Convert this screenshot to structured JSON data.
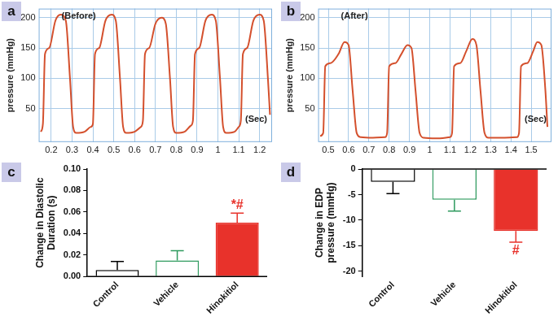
{
  "chart_data": [
    {
      "type": "line",
      "title": "a",
      "x_label": "(Sec)",
      "y_label": "pressure (mmHg)",
      "annotations": [
        {
          "text": "(Before)"
        }
      ],
      "color": "#d4502d",
      "grid": true,
      "x": [
        0.15,
        0.16,
        0.17,
        0.19,
        0.22,
        0.245,
        0.27,
        0.29,
        0.305,
        0.32,
        0.36,
        0.39,
        0.4,
        0.41,
        0.43,
        0.46,
        0.49,
        0.51,
        0.53,
        0.545,
        0.56,
        0.6,
        0.63,
        0.64,
        0.65,
        0.67,
        0.7,
        0.73,
        0.75,
        0.77,
        0.785,
        0.8,
        0.84,
        0.87,
        0.88,
        0.89,
        0.91,
        0.94,
        0.97,
        0.99,
        1.01,
        1.025,
        1.04,
        1.08,
        1.1,
        1.11,
        1.12,
        1.14,
        1.17,
        1.2,
        1.22,
        1.24,
        1.25
      ],
      "values": [
        12,
        25,
        140,
        150,
        195,
        205,
        195,
        100,
        20,
        10,
        12,
        20,
        25,
        140,
        150,
        195,
        205,
        195,
        100,
        20,
        10,
        12,
        20,
        30,
        140,
        150,
        190,
        200,
        190,
        100,
        20,
        10,
        12,
        22,
        30,
        140,
        150,
        195,
        205,
        195,
        100,
        20,
        10,
        12,
        20,
        30,
        140,
        150,
        195,
        205,
        195,
        100,
        40
      ],
      "xlim": [
        0.14,
        1.26
      ],
      "xticks": [
        0.2,
        0.3,
        0.4,
        0.5,
        0.6,
        0.7,
        0.8,
        0.9,
        1,
        1.1,
        1.2
      ],
      "ylim": [
        -5,
        215
      ],
      "yticks": [
        50,
        100,
        150,
        200
      ]
    },
    {
      "type": "line",
      "title": "b",
      "x_label": "(Sec)",
      "y_label": "pressure (mmHg)",
      "annotations": [
        {
          "text": "(After)"
        }
      ],
      "color": "#d4502d",
      "grid": true,
      "x": [
        0.46,
        0.475,
        0.485,
        0.51,
        0.55,
        0.58,
        0.6,
        0.62,
        0.64,
        0.66,
        0.72,
        0.78,
        0.79,
        0.8,
        0.83,
        0.86,
        0.89,
        0.91,
        0.93,
        0.95,
        0.97,
        1.03,
        1.1,
        1.11,
        1.12,
        1.15,
        1.18,
        1.21,
        1.23,
        1.25,
        1.27,
        1.29,
        1.36,
        1.43,
        1.44,
        1.45,
        1.48,
        1.51,
        1.53,
        1.55,
        1.57,
        1.58
      ],
      "values": [
        5,
        10,
        120,
        125,
        140,
        160,
        155,
        80,
        10,
        3,
        2,
        3,
        10,
        120,
        125,
        140,
        155,
        150,
        80,
        10,
        2,
        1,
        3,
        10,
        120,
        125,
        145,
        165,
        155,
        80,
        10,
        2,
        2,
        3,
        10,
        120,
        125,
        145,
        160,
        155,
        80,
        20
      ],
      "xlim": [
        0.45,
        1.6
      ],
      "xticks": [
        0.5,
        0.6,
        0.7,
        0.8,
        0.9,
        1,
        1.1,
        1.2,
        1.3,
        1.4,
        1.5
      ],
      "ylim": [
        -5,
        215
      ],
      "yticks": [
        50,
        100,
        150,
        200
      ]
    },
    {
      "type": "bar",
      "title": "c",
      "y_label": "Change in Diastolic Duration (s)",
      "categories": [
        "Control",
        "Vehicle",
        "Hinokitiol"
      ],
      "values": [
        0.006,
        0.015,
        0.05
      ],
      "errors": [
        0.008,
        0.009,
        0.009
      ],
      "colors": [
        "#000000",
        "#2e9a5e",
        "#e8322b"
      ],
      "grid": false,
      "annotations": [
        {
          "text": "*#",
          "category": "Hinokitiol"
        }
      ],
      "ylim": [
        0,
        0.1
      ],
      "yticks": [
        {
          "value": 0,
          "label": "0.00"
        },
        {
          "value": 0.02,
          "label": "0.02"
        },
        {
          "value": 0.04,
          "label": "0.04"
        },
        {
          "value": 0.06,
          "label": "0.06"
        },
        {
          "value": 0.08,
          "label": "0.08"
        },
        {
          "value": 0.1,
          "label": "0.10"
        }
      ]
    },
    {
      "type": "bar",
      "title": "d",
      "y_label": "Change in EDP pressure (mmHg)",
      "categories": [
        "Control",
        "Vehicle",
        "Hinokitiol"
      ],
      "values": [
        -2.5,
        -6,
        -12.1
      ],
      "errors": [
        2.3,
        2.2,
        2.2
      ],
      "colors": [
        "#000000",
        "#2e9a5e",
        "#e8322b"
      ],
      "grid": false,
      "annotations": [
        {
          "text": "#",
          "category": "Hinokitiol"
        }
      ],
      "ylim": [
        -21,
        0
      ],
      "yticks": [
        -20,
        -15,
        -10,
        -5,
        0
      ]
    }
  ]
}
